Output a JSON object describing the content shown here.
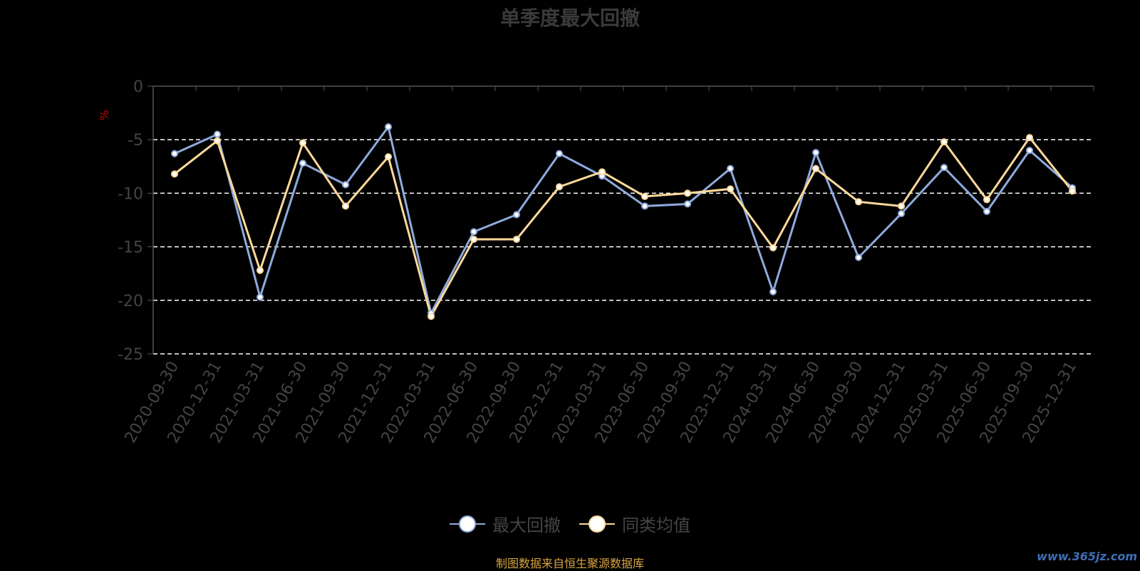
{
  "title": "单季度最大回撤",
  "source_text": "制图数据来自恒生聚源数据库",
  "watermark": "www.365jz.com",
  "colors": {
    "background": "#000000",
    "series_max_drawdown": "#8faadc",
    "series_peer_avg": "#ffd99a",
    "axis": "#555555",
    "tick_label": "#444444",
    "unit_label": "#cc0000",
    "grid": "#ffffff",
    "title": "#3a3a3a",
    "source": "#d9a441"
  },
  "legend": [
    {
      "label": "最大回撤"
    },
    {
      "label": "同类均值"
    }
  ],
  "chart_data": {
    "type": "line",
    "title": "单季度最大回撤",
    "ylabel": "%",
    "ylim": [
      -25,
      0
    ],
    "yticks": [
      0,
      -5,
      -10,
      -15,
      -20,
      -25
    ],
    "grid": true,
    "legend_position": "bottom",
    "categories": [
      "2020-09-30",
      "2020-12-31",
      "2021-03-31",
      "2021-06-30",
      "2021-09-30",
      "2021-12-31",
      "2022-03-31",
      "2022-06-30",
      "2022-09-30",
      "2022-12-31",
      "2023-03-31",
      "2023-06-30",
      "2023-09-30",
      "2023-12-31",
      "2024-03-31",
      "2024-06-30",
      "2024-09-30",
      "2024-12-31",
      "2025-03-31",
      "2025-06-30",
      "2025-09-30",
      "2025-12-31"
    ],
    "series": [
      {
        "name": "最大回撤",
        "values": [
          -6.3,
          -4.5,
          -19.7,
          -7.2,
          -9.2,
          -3.8,
          -21.2,
          -13.6,
          -12.0,
          -6.3,
          -8.4,
          -11.2,
          -11.0,
          -7.7,
          -19.2,
          -6.2,
          -16.0,
          -11.9,
          -7.6,
          -11.7,
          -6.0,
          -9.5
        ]
      },
      {
        "name": "同类均值",
        "values": [
          -8.2,
          -5.1,
          -17.2,
          -5.3,
          -11.2,
          -6.6,
          -21.5,
          -14.3,
          -14.3,
          -9.4,
          -8.0,
          -10.3,
          -10.0,
          -9.6,
          -15.1,
          -7.7,
          -10.8,
          -11.2,
          -5.2,
          -10.6,
          -4.8,
          -9.8
        ]
      }
    ]
  }
}
